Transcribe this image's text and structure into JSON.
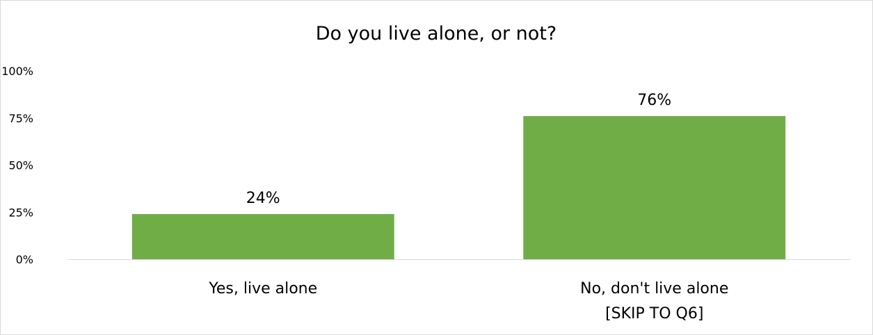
{
  "chart_data": {
    "type": "bar",
    "title": "Do you live alone, or not?",
    "categories": [
      [
        "Yes, live alone"
      ],
      [
        "No, don't live alone",
        "[SKIP TO Q6]"
      ]
    ],
    "values": [
      24,
      76
    ],
    "data_labels": [
      "24%",
      "76%"
    ],
    "ylim": [
      0,
      100
    ],
    "yticks": [
      0,
      25,
      50,
      75,
      100
    ],
    "ytick_labels": [
      "0%",
      "25%",
      "50%",
      "75%",
      "100%"
    ],
    "grid": false,
    "legend": "none",
    "bar_color": "#70ad47",
    "axis_color": "#d9d9d9"
  }
}
